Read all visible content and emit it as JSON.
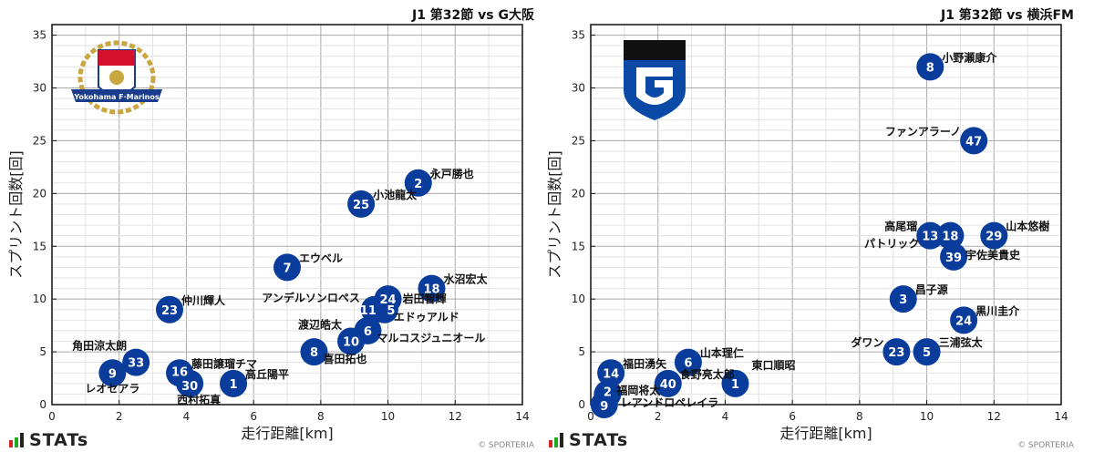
{
  "colors": {
    "point": "#0a3c9c",
    "point_text": "#ffffff",
    "grid_major": "#aaaaaa",
    "grid_minor": "#e2e2e2"
  },
  "footer": {
    "brand": "STATs",
    "copyright": "© SPORTERIA"
  },
  "chart_data": [
    {
      "type": "scatter",
      "title": "J1 第32節 vs G大阪",
      "team_logo": "yokohama-f-marinos-logo",
      "logo_text": "Yokohama F·Marinos",
      "xlabel": "走行距離[km]",
      "ylabel": "スプリント回数[回]",
      "xlim": [
        0,
        14
      ],
      "ylim": [
        0,
        36
      ],
      "xticks": [
        "0",
        "2",
        "4",
        "6",
        "8",
        "10",
        "12",
        "14"
      ],
      "yticks": [
        "0",
        "5",
        "10",
        "15",
        "20",
        "25",
        "30",
        "35"
      ],
      "grid": true,
      "points": [
        {
          "num": "2",
          "name": "永戸勝也",
          "x": 10.9,
          "y": 21,
          "side": "right"
        },
        {
          "num": "25",
          "name": "小池龍太",
          "x": 9.2,
          "y": 19,
          "side": "right"
        },
        {
          "num": "7",
          "name": "エウベル",
          "x": 7.0,
          "y": 13,
          "side": "right"
        },
        {
          "num": "18",
          "name": "水沼宏太",
          "x": 11.3,
          "y": 11,
          "side": "right"
        },
        {
          "num": "24",
          "name": "岩田智輝",
          "x": 10.0,
          "y": 10,
          "side": "right"
        },
        {
          "num": "11",
          "name": "アンデルソンロペス",
          "x": 9.6,
          "y": 9,
          "side": "left"
        },
        {
          "num": "5",
          "name": "エドゥアルド",
          "x": 9.9,
          "y": 9,
          "side": "rightlow"
        },
        {
          "num": "6",
          "name": "マルコスジュニオール",
          "x": 9.4,
          "y": 7,
          "side": "rightlow"
        },
        {
          "num": "10",
          "name": "渡辺皓太",
          "x": 8.9,
          "y": 6,
          "side": "leftup"
        },
        {
          "num": "8",
          "name": "喜田拓也",
          "x": 7.8,
          "y": 5,
          "side": "rightlow"
        },
        {
          "num": "23",
          "name": "仲川輝人",
          "x": 3.5,
          "y": 9,
          "side": "right"
        },
        {
          "num": "33",
          "name": "角田涼太朗",
          "x": 2.5,
          "y": 4,
          "side": "leftup"
        },
        {
          "num": "9",
          "name": "レオセアラ",
          "x": 1.8,
          "y": 3,
          "side": "rightlow"
        },
        {
          "num": "16",
          "name": "藤田譲瑠チマ",
          "x": 3.8,
          "y": 3,
          "side": "right"
        },
        {
          "num": "30",
          "name": "西村拓真",
          "x": 4.1,
          "y": 2,
          "side": "below"
        },
        {
          "num": "1",
          "name": "高丘陽平",
          "x": 5.4,
          "y": 2,
          "side": "right"
        }
      ]
    },
    {
      "type": "scatter",
      "title": "J1 第32節 vs 横浜FM",
      "team_logo": "gamba-osaka-logo",
      "xlabel": "走行距離[km]",
      "ylabel": "スプリント回数[回]",
      "xlim": [
        0,
        14
      ],
      "ylim": [
        0,
        36
      ],
      "xticks": [
        "0",
        "2",
        "4",
        "6",
        "8",
        "10",
        "12",
        "14"
      ],
      "yticks": [
        "0",
        "5",
        "10",
        "15",
        "20",
        "25",
        "30",
        "35"
      ],
      "grid": true,
      "points": [
        {
          "num": "8",
          "name": "小野瀬康介",
          "x": 10.1,
          "y": 32,
          "side": "right"
        },
        {
          "num": "47",
          "name": "ファンアラーノ",
          "x": 11.4,
          "y": 25,
          "side": "left"
        },
        {
          "num": "13",
          "name": "高尾瑠",
          "x": 10.1,
          "y": 16,
          "side": "left"
        },
        {
          "num": "18",
          "name": "パトリック",
          "x": 10.7,
          "y": 16,
          "side": "leftlow2"
        },
        {
          "num": "29",
          "name": "山本悠樹",
          "x": 12.0,
          "y": 16,
          "side": "right"
        },
        {
          "num": "39",
          "name": "宇佐美貴史",
          "x": 10.8,
          "y": 14,
          "side": "right"
        },
        {
          "num": "3",
          "name": "昌子源",
          "x": 9.3,
          "y": 10,
          "side": "right"
        },
        {
          "num": "24",
          "name": "黒川圭介",
          "x": 11.1,
          "y": 8,
          "side": "right"
        },
        {
          "num": "23",
          "name": "ダワン",
          "x": 9.1,
          "y": 5,
          "side": "left"
        },
        {
          "num": "5",
          "name": "三浦弦太",
          "x": 10.0,
          "y": 5,
          "side": "right"
        },
        {
          "num": "6",
          "name": "山本理仁",
          "x": 2.9,
          "y": 4,
          "side": "right"
        },
        {
          "num": "14",
          "name": "福田湧矢",
          "x": 0.6,
          "y": 3,
          "side": "right"
        },
        {
          "num": "40",
          "name": "食野亮太郎",
          "x": 2.3,
          "y": 2,
          "side": "right"
        },
        {
          "num": "1",
          "name": "東口順昭",
          "x": 4.3,
          "y": 2,
          "side": "rightup"
        },
        {
          "num": "2",
          "name": "福岡将太",
          "x": 0.5,
          "y": 1,
          "side": "right"
        },
        {
          "num": "9",
          "name": "レアンドロペレイラ",
          "x": 0.4,
          "y": 0,
          "side": "rightup"
        }
      ]
    }
  ]
}
